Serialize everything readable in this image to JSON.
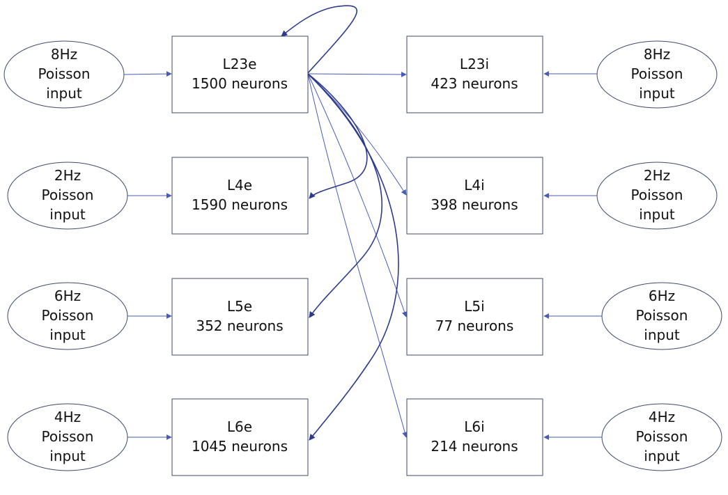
{
  "colors": {
    "box_stroke": "#3f4a6b",
    "edge": "#4a5bb5",
    "edge_strong": "#2d3a8c",
    "text": "#111111"
  },
  "populations": [
    {
      "name": "L23e",
      "count": "1500 neurons"
    },
    {
      "name": "L23i",
      "count": "423 neurons"
    },
    {
      "name": "L4e",
      "count": "1590 neurons"
    },
    {
      "name": "L4i",
      "count": "398 neurons"
    },
    {
      "name": "L5e",
      "count": "352 neurons"
    },
    {
      "name": "L5i",
      "count": "77 neurons"
    },
    {
      "name": "L6e",
      "count": "1045 neurons"
    },
    {
      "name": "L6i",
      "count": "214 neurons"
    }
  ],
  "inputs": [
    {
      "rate": "8Hz",
      "kind": "Poisson",
      "word": "input"
    },
    {
      "rate": "8Hz",
      "kind": "Poisson",
      "word": "input"
    },
    {
      "rate": "2Hz",
      "kind": "Poisson",
      "word": "input"
    },
    {
      "rate": "2Hz",
      "kind": "Poisson",
      "word": "input"
    },
    {
      "rate": "6Hz",
      "kind": "Poisson",
      "word": "input"
    },
    {
      "rate": "6Hz",
      "kind": "Poisson",
      "word": "input"
    },
    {
      "rate": "4Hz",
      "kind": "Poisson",
      "word": "input"
    },
    {
      "rate": "4Hz",
      "kind": "Poisson",
      "word": "input"
    }
  ]
}
